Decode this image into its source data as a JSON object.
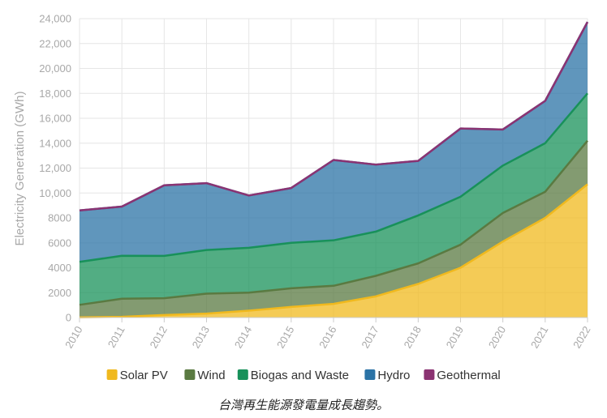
{
  "chart_data": {
    "type": "area",
    "stacked": true,
    "title": "",
    "xlabel": "",
    "ylabel": "Electricity Generation (GWh)",
    "x": [
      "2010",
      "2011",
      "2012",
      "2013",
      "2014",
      "2015",
      "2016",
      "2017",
      "2018",
      "2019",
      "2020",
      "2021",
      "2022"
    ],
    "ylim": [
      0,
      24000
    ],
    "yticks": [
      0,
      2000,
      4000,
      6000,
      8000,
      10000,
      12000,
      14000,
      16000,
      18000,
      20000,
      22000,
      24000
    ],
    "ytick_labels": [
      "0",
      "2000",
      "4000",
      "6000",
      "8000",
      "10,000",
      "12,000",
      "14,000",
      "16,000",
      "18,000",
      "20,000",
      "22,000",
      "24,000"
    ],
    "grid": true,
    "legend_position": "bottom",
    "series": [
      {
        "name": "Solar PV",
        "color": "#f0b91e",
        "values": [
          20,
          60,
          200,
          320,
          550,
          850,
          1100,
          1700,
          2700,
          4000,
          6100,
          8000,
          10700
        ]
      },
      {
        "name": "Wind",
        "color": "#5a7a41",
        "values": [
          1000,
          1450,
          1350,
          1600,
          1450,
          1500,
          1450,
          1650,
          1650,
          1850,
          2300,
          2100,
          3500
        ]
      },
      {
        "name": "Biogas and Waste",
        "color": "#18915a",
        "values": [
          3450,
          3450,
          3400,
          3500,
          3600,
          3650,
          3650,
          3550,
          3850,
          3850,
          3800,
          3900,
          3800
        ]
      },
      {
        "name": "Hydro",
        "color": "#2b73a6",
        "values": [
          4130,
          3950,
          5670,
          5370,
          4200,
          4400,
          6450,
          5380,
          4380,
          5480,
          2900,
          3400,
          5730
        ]
      },
      {
        "name": "Geothermal",
        "color": "#8b3372",
        "values": [
          0,
          0,
          0,
          0,
          0,
          0,
          0,
          0,
          0,
          0,
          0,
          0,
          0
        ]
      }
    ]
  },
  "caption": "台灣再生能源發電量成長趨勢。"
}
